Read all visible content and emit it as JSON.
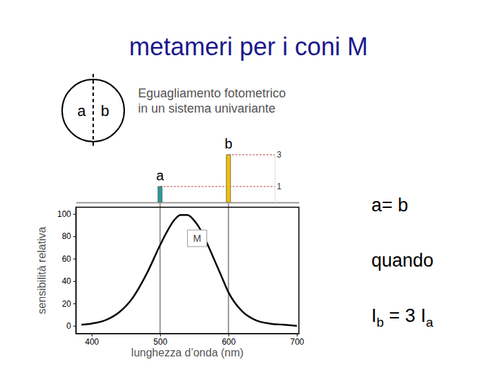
{
  "title": "metameri per i coni M",
  "diagram": {
    "labels": [
      "a",
      "b"
    ],
    "caption": [
      "Eguagliamento fotometrico",
      "in un sistema univariante"
    ]
  },
  "annotations": {
    "match": "a= b",
    "condition": "quando",
    "equation": [
      "I",
      "b",
      " = 3 I",
      "a"
    ]
  },
  "chart_data": [
    {
      "type": "bar",
      "categories": [
        "a",
        "b"
      ],
      "x": [
        500,
        600
      ],
      "values": [
        1,
        3
      ],
      "colors": [
        "#2a9a9a",
        "#f2c200"
      ],
      "xlim": [
        377,
        703
      ],
      "ylim": [
        0,
        3
      ],
      "yticks": [
        1,
        3
      ],
      "tick_labels": "y",
      "line_style": "dashed"
    },
    {
      "type": "line",
      "xlabel": "lunghezza d’onda (nm)",
      "ylabel": "sensibilità relativa",
      "x": [
        385,
        400,
        420,
        440,
        460,
        480,
        500,
        510,
        520,
        530,
        540,
        550,
        560,
        570,
        580,
        590,
        600,
        620,
        640,
        660,
        680,
        700
      ],
      "series": [
        {
          "name": "M",
          "color": "#000000",
          "values": [
            1,
            2,
            5,
            12,
            25,
            46,
            72,
            84,
            94,
            99,
            99,
            94,
            85,
            72,
            58,
            44,
            30,
            13,
            5,
            2,
            1,
            0
          ]
        }
      ],
      "xlim": [
        377,
        703
      ],
      "ylim": [
        -7,
        106
      ],
      "xticks": [
        400,
        500,
        600,
        700
      ],
      "yticks": [
        0,
        20,
        40,
        60,
        80,
        100
      ],
      "grid": false
    }
  ]
}
